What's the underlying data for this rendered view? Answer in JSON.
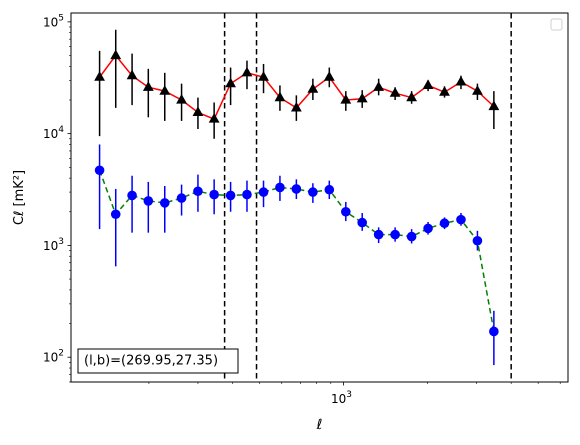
{
  "chart_data": {
    "type": "scatter",
    "xscale": "log",
    "yscale": "log",
    "xlim": [
      105,
      6400
    ],
    "ylim": [
      60,
      120000
    ],
    "xlabel": "ℓ",
    "ylabel": "Cℓ  [mK²]",
    "xticklabels": [
      {
        "value": 1000,
        "base": "10",
        "exp": "3"
      }
    ],
    "yticklabels": [
      {
        "value": 100,
        "base": "10",
        "exp": "2"
      },
      {
        "value": 1000,
        "base": "10",
        "exp": "3"
      },
      {
        "value": 10000,
        "base": "10",
        "exp": "4"
      },
      {
        "value": 100000,
        "base": "10",
        "exp": "5"
      }
    ],
    "grid": false,
    "legend": {
      "placement": "top-right",
      "entries": []
    },
    "annotation": "(l,b)=(269.95,27.35)",
    "vlines": [
      374,
      487,
      4000
    ],
    "series": [
      {
        "color": "#000000",
        "line_color": "#ff0000",
        "line_style": "solid",
        "marker": "triangle",
        "points": [
          {
            "x": 133,
            "y": 32000,
            "lo": 9500,
            "hi": 55000
          },
          {
            "x": 152,
            "y": 50000,
            "lo": 17000,
            "hi": 85000
          },
          {
            "x": 174,
            "y": 33000,
            "lo": 18000,
            "hi": 52000
          },
          {
            "x": 199,
            "y": 26000,
            "lo": 14000,
            "hi": 38000
          },
          {
            "x": 228,
            "y": 24000,
            "lo": 13000,
            "hi": 35000
          },
          {
            "x": 262,
            "y": 20000,
            "lo": 13000,
            "hi": 28000
          },
          {
            "x": 300,
            "y": 15500,
            "lo": 11000,
            "hi": 21000
          },
          {
            "x": 343,
            "y": 13500,
            "lo": 9000,
            "hi": 19000
          },
          {
            "x": 393,
            "y": 28000,
            "lo": 18000,
            "hi": 39000
          },
          {
            "x": 450,
            "y": 35000,
            "lo": 25000,
            "hi": 45000
          },
          {
            "x": 516,
            "y": 32000,
            "lo": 23000,
            "hi": 42000
          },
          {
            "x": 591,
            "y": 21000,
            "lo": 16000,
            "hi": 27000
          },
          {
            "x": 677,
            "y": 17000,
            "lo": 13000,
            "hi": 22000
          },
          {
            "x": 776,
            "y": 25000,
            "lo": 20000,
            "hi": 31000
          },
          {
            "x": 889,
            "y": 32000,
            "lo": 26000,
            "hi": 39000
          },
          {
            "x": 1019,
            "y": 20000,
            "lo": 16000,
            "hi": 24000
          },
          {
            "x": 1167,
            "y": 20500,
            "lo": 17000,
            "hi": 24500
          },
          {
            "x": 1337,
            "y": 26000,
            "lo": 22000,
            "hi": 31000
          },
          {
            "x": 1532,
            "y": 23000,
            "lo": 20000,
            "hi": 26000
          },
          {
            "x": 1756,
            "y": 21000,
            "lo": 18500,
            "hi": 24000
          },
          {
            "x": 2012,
            "y": 27000,
            "lo": 24000,
            "hi": 30000
          },
          {
            "x": 2305,
            "y": 23500,
            "lo": 21000,
            "hi": 26500
          },
          {
            "x": 2641,
            "y": 29000,
            "lo": 25000,
            "hi": 33000
          },
          {
            "x": 3026,
            "y": 24000,
            "lo": 20000,
            "hi": 28000
          },
          {
            "x": 3467,
            "y": 17500,
            "lo": 11000,
            "hi": 24000
          }
        ]
      },
      {
        "color": "#0000ff",
        "line_color": "#008000",
        "line_style": "dashed",
        "marker": "circle",
        "points": [
          {
            "x": 133,
            "y": 4700,
            "lo": 1400,
            "hi": 8000
          },
          {
            "x": 152,
            "y": 1900,
            "lo": 650,
            "hi": 3200
          },
          {
            "x": 174,
            "y": 2800,
            "lo": 1300,
            "hi": 4200
          },
          {
            "x": 199,
            "y": 2500,
            "lo": 1300,
            "hi": 3700
          },
          {
            "x": 228,
            "y": 2400,
            "lo": 1300,
            "hi": 3400
          },
          {
            "x": 262,
            "y": 2650,
            "lo": 1850,
            "hi": 3500
          },
          {
            "x": 300,
            "y": 3050,
            "lo": 2000,
            "hi": 4300
          },
          {
            "x": 343,
            "y": 2850,
            "lo": 1900,
            "hi": 3900
          },
          {
            "x": 393,
            "y": 2800,
            "lo": 2000,
            "hi": 3700
          },
          {
            "x": 450,
            "y": 2850,
            "lo": 2000,
            "hi": 3800
          },
          {
            "x": 516,
            "y": 3000,
            "lo": 2200,
            "hi": 3800
          },
          {
            "x": 591,
            "y": 3300,
            "lo": 2500,
            "hi": 4200
          },
          {
            "x": 677,
            "y": 3200,
            "lo": 2600,
            "hi": 3900
          },
          {
            "x": 776,
            "y": 3000,
            "lo": 2400,
            "hi": 3600
          },
          {
            "x": 889,
            "y": 3150,
            "lo": 2600,
            "hi": 3800
          },
          {
            "x": 1019,
            "y": 2000,
            "lo": 1650,
            "hi": 2450
          },
          {
            "x": 1167,
            "y": 1600,
            "lo": 1350,
            "hi": 1950
          },
          {
            "x": 1337,
            "y": 1250,
            "lo": 1050,
            "hi": 1450
          },
          {
            "x": 1532,
            "y": 1250,
            "lo": 1080,
            "hi": 1450
          },
          {
            "x": 1756,
            "y": 1200,
            "lo": 1040,
            "hi": 1400
          },
          {
            "x": 2012,
            "y": 1420,
            "lo": 1250,
            "hi": 1620
          },
          {
            "x": 2305,
            "y": 1580,
            "lo": 1400,
            "hi": 1780
          },
          {
            "x": 2641,
            "y": 1700,
            "lo": 1500,
            "hi": 1950
          },
          {
            "x": 3026,
            "y": 1100,
            "lo": 900,
            "hi": 1350
          },
          {
            "x": 3467,
            "y": 170,
            "lo": 85,
            "hi": 260
          }
        ]
      }
    ]
  }
}
